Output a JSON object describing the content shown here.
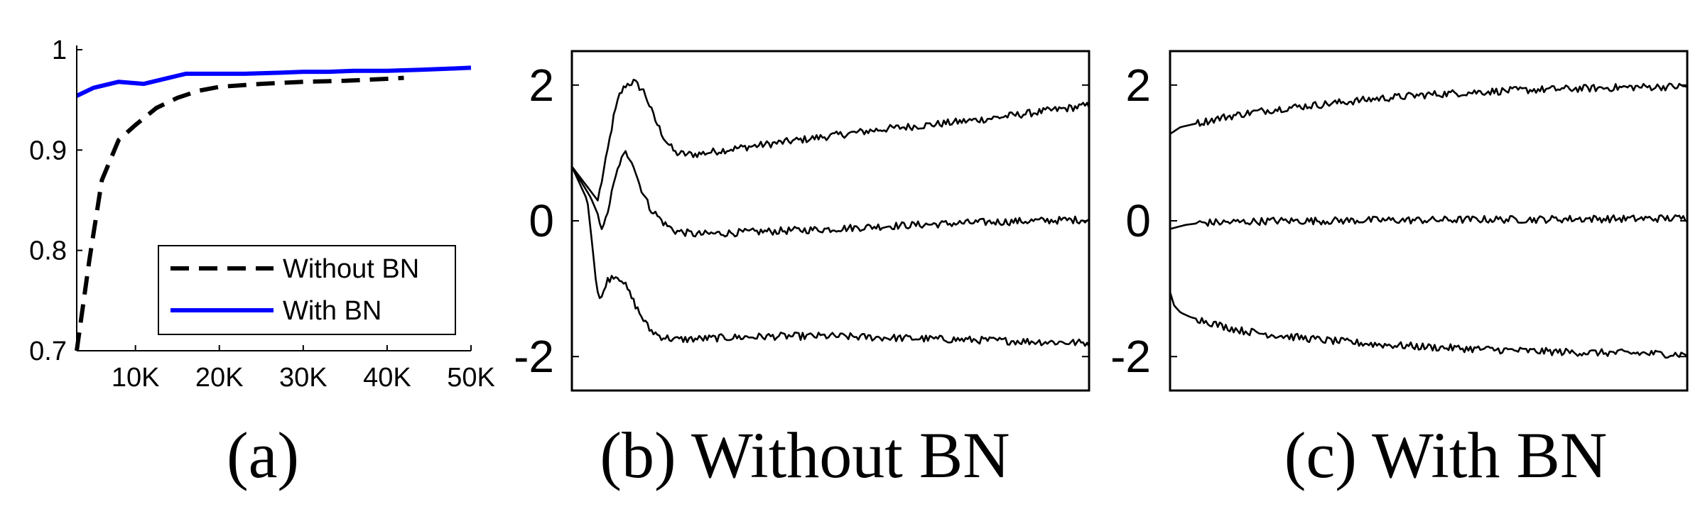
{
  "panels": {
    "a": {
      "caption": "(a)"
    },
    "b": {
      "caption": "(b) Without BN"
    },
    "c": {
      "caption": "(c) With BN"
    }
  },
  "chart_data": [
    {
      "id": "a",
      "type": "line",
      "caption": "(a)",
      "title": "",
      "xlabel": "",
      "ylabel": "",
      "xlim": [
        3000,
        50000
      ],
      "ylim": [
        0.7,
        1.0
      ],
      "xticks": [
        10000,
        20000,
        30000,
        40000,
        50000
      ],
      "xtick_labels": [
        "10K",
        "20K",
        "30K",
        "40K",
        "50K"
      ],
      "yticks": [
        0.7,
        0.8,
        0.9,
        1.0
      ],
      "ytick_labels": [
        "0.7",
        "0.8",
        "0.9",
        "1"
      ],
      "grid": false,
      "legend": "bottom-right",
      "series": [
        {
          "name": "Without BN",
          "style": "dashed",
          "color": "#000000",
          "x": [
            3000,
            4500,
            6000,
            8000,
            10000,
            12500,
            15000,
            17500,
            20000,
            25000,
            30000,
            35000,
            40000,
            42000
          ],
          "y": [
            0.7,
            0.79,
            0.87,
            0.91,
            0.925,
            0.942,
            0.952,
            0.959,
            0.963,
            0.966,
            0.968,
            0.969,
            0.971,
            0.972
          ]
        },
        {
          "name": "With BN",
          "style": "solid",
          "color": "#0000ff",
          "x": [
            3000,
            5000,
            8000,
            11000,
            14000,
            16000,
            20000,
            23000,
            27000,
            30000,
            33000,
            36000,
            40000,
            44000,
            47000,
            50000
          ],
          "y": [
            0.954,
            0.962,
            0.968,
            0.966,
            0.972,
            0.976,
            0.976,
            0.976,
            0.977,
            0.978,
            0.978,
            0.979,
            0.979,
            0.98,
            0.981,
            0.982
          ]
        }
      ]
    },
    {
      "id": "b",
      "type": "line",
      "caption": "(b) Without BN",
      "title": "",
      "xlabel": "",
      "ylabel": "",
      "xlim": [
        0,
        50000
      ],
      "ylim": [
        -2.5,
        2.5
      ],
      "yticks": [
        -2,
        0,
        2
      ],
      "ytick_labels": [
        "-2",
        "0",
        "2"
      ],
      "grid": false,
      "color": "#000000",
      "series": [
        {
          "name": "",
          "x": [
            0,
            2500,
            3300,
            4000,
            4600,
            5200,
            6000,
            7000,
            8000,
            9000,
            10000,
            11000,
            12000,
            15000,
            20000,
            25000,
            30000,
            35000,
            40000,
            45000,
            50000
          ],
          "y": [
            0.8,
            0.3,
            0.9,
            1.5,
            1.85,
            2.0,
            2.05,
            1.9,
            1.5,
            1.2,
            1.0,
            0.98,
            0.98,
            1.05,
            1.15,
            1.25,
            1.35,
            1.42,
            1.5,
            1.6,
            1.7
          ]
        },
        {
          "name": "",
          "x": [
            0,
            1800,
            2500,
            3000,
            3400,
            4000,
            4600,
            5200,
            5800,
            6500,
            7500,
            9000,
            10000,
            12000,
            15000,
            20000,
            25000,
            30000,
            35000,
            40000,
            45000,
            50000
          ],
          "y": [
            0.8,
            0.35,
            0.1,
            -0.15,
            0.1,
            0.5,
            0.85,
            1.0,
            0.9,
            0.55,
            0.2,
            -0.05,
            -0.15,
            -0.2,
            -0.18,
            -0.15,
            -0.12,
            -0.08,
            -0.05,
            -0.02,
            0.0,
            0.02
          ]
        },
        {
          "name": "",
          "x": [
            0,
            1500,
            2000,
            2400,
            2800,
            3300,
            4000,
            4800,
            5500,
            6500,
            7500,
            8500,
            10000,
            12000,
            15000,
            20000,
            25000,
            30000,
            35000,
            40000,
            45000,
            50000
          ],
          "y": [
            0.8,
            0.3,
            -0.4,
            -1.0,
            -1.2,
            -0.9,
            -0.8,
            -0.85,
            -1.05,
            -1.35,
            -1.6,
            -1.7,
            -1.75,
            -1.74,
            -1.72,
            -1.7,
            -1.7,
            -1.72,
            -1.74,
            -1.76,
            -1.78,
            -1.8
          ]
        }
      ]
    },
    {
      "id": "c",
      "type": "line",
      "caption": "(c) With BN",
      "title": "",
      "xlabel": "",
      "ylabel": "",
      "xlim": [
        0,
        50000
      ],
      "ylim": [
        -2.5,
        2.5
      ],
      "yticks": [
        -2,
        0,
        2
      ],
      "ytick_labels": [
        "-2",
        "0",
        "2"
      ],
      "grid": false,
      "color": "#000000",
      "series": [
        {
          "name": "",
          "x": [
            0,
            1000,
            3000,
            5000,
            8000,
            11000,
            15000,
            20000,
            25000,
            30000,
            35000,
            40000,
            45000,
            50000
          ],
          "y": [
            1.28,
            1.38,
            1.45,
            1.52,
            1.6,
            1.66,
            1.72,
            1.8,
            1.86,
            1.9,
            1.93,
            1.95,
            1.97,
            1.98
          ]
        },
        {
          "name": "",
          "x": [
            0,
            1500,
            3000,
            6000,
            10000,
            15000,
            20000,
            25000,
            30000,
            35000,
            40000,
            45000,
            50000
          ],
          "y": [
            -0.12,
            -0.06,
            -0.03,
            -0.02,
            0.0,
            0.0,
            0.01,
            0.01,
            0.02,
            0.02,
            0.03,
            0.03,
            0.04
          ]
        },
        {
          "name": "",
          "x": [
            0,
            400,
            1000,
            2000,
            3500,
            5000,
            7000,
            10000,
            15000,
            20000,
            25000,
            30000,
            35000,
            40000,
            45000,
            50000
          ],
          "y": [
            -1.05,
            -1.25,
            -1.35,
            -1.42,
            -1.48,
            -1.55,
            -1.62,
            -1.68,
            -1.76,
            -1.82,
            -1.86,
            -1.89,
            -1.92,
            -1.94,
            -1.95,
            -1.97
          ]
        }
      ]
    }
  ]
}
